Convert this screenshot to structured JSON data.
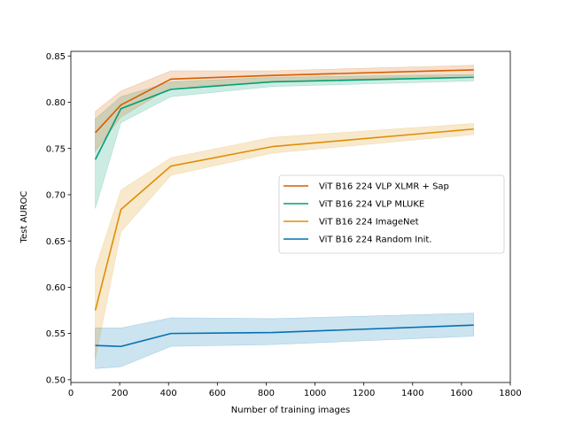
{
  "chart_data": {
    "type": "line",
    "title": "",
    "xlabel": "Number of training images",
    "ylabel": "Test AUROC",
    "xlim": [
      0,
      1800
    ],
    "ylim": [
      0.497,
      0.855
    ],
    "xticks": [
      0,
      200,
      400,
      600,
      800,
      1000,
      1200,
      1400,
      1600,
      1800
    ],
    "yticks": [
      0.5,
      0.55,
      0.6,
      0.65,
      0.7,
      0.75,
      0.8,
      0.85
    ],
    "grid": false,
    "legend_position": "center-right",
    "x": [
      100,
      205,
      410,
      825,
      1650
    ],
    "series": [
      {
        "name": "ViT B16 224 VLP XLMR + Sap",
        "color": "#d55e00",
        "values": [
          0.767,
          0.797,
          0.825,
          0.829,
          0.835
        ],
        "lower": [
          0.747,
          0.784,
          0.816,
          0.822,
          0.829
        ],
        "upper": [
          0.79,
          0.812,
          0.834,
          0.834,
          0.84
        ]
      },
      {
        "name": "ViT B16 224 VLP MLUKE",
        "color": "#009e73",
        "values": [
          0.738,
          0.793,
          0.814,
          0.822,
          0.827
        ],
        "lower": [
          0.685,
          0.778,
          0.806,
          0.817,
          0.823
        ],
        "upper": [
          0.782,
          0.806,
          0.822,
          0.827,
          0.83
        ]
      },
      {
        "name": "ViT B16 224 ImageNet",
        "color": "#de8f05",
        "values": [
          0.575,
          0.684,
          0.731,
          0.752,
          0.771
        ],
        "lower": [
          0.522,
          0.66,
          0.721,
          0.745,
          0.765
        ],
        "upper": [
          0.62,
          0.705,
          0.74,
          0.762,
          0.777
        ]
      },
      {
        "name": "ViT B16 224 Random Init.",
        "color": "#0173b2",
        "values": [
          0.537,
          0.536,
          0.55,
          0.551,
          0.559
        ],
        "lower": [
          0.512,
          0.514,
          0.536,
          0.538,
          0.547
        ],
        "upper": [
          0.556,
          0.556,
          0.567,
          0.566,
          0.572
        ]
      }
    ]
  }
}
